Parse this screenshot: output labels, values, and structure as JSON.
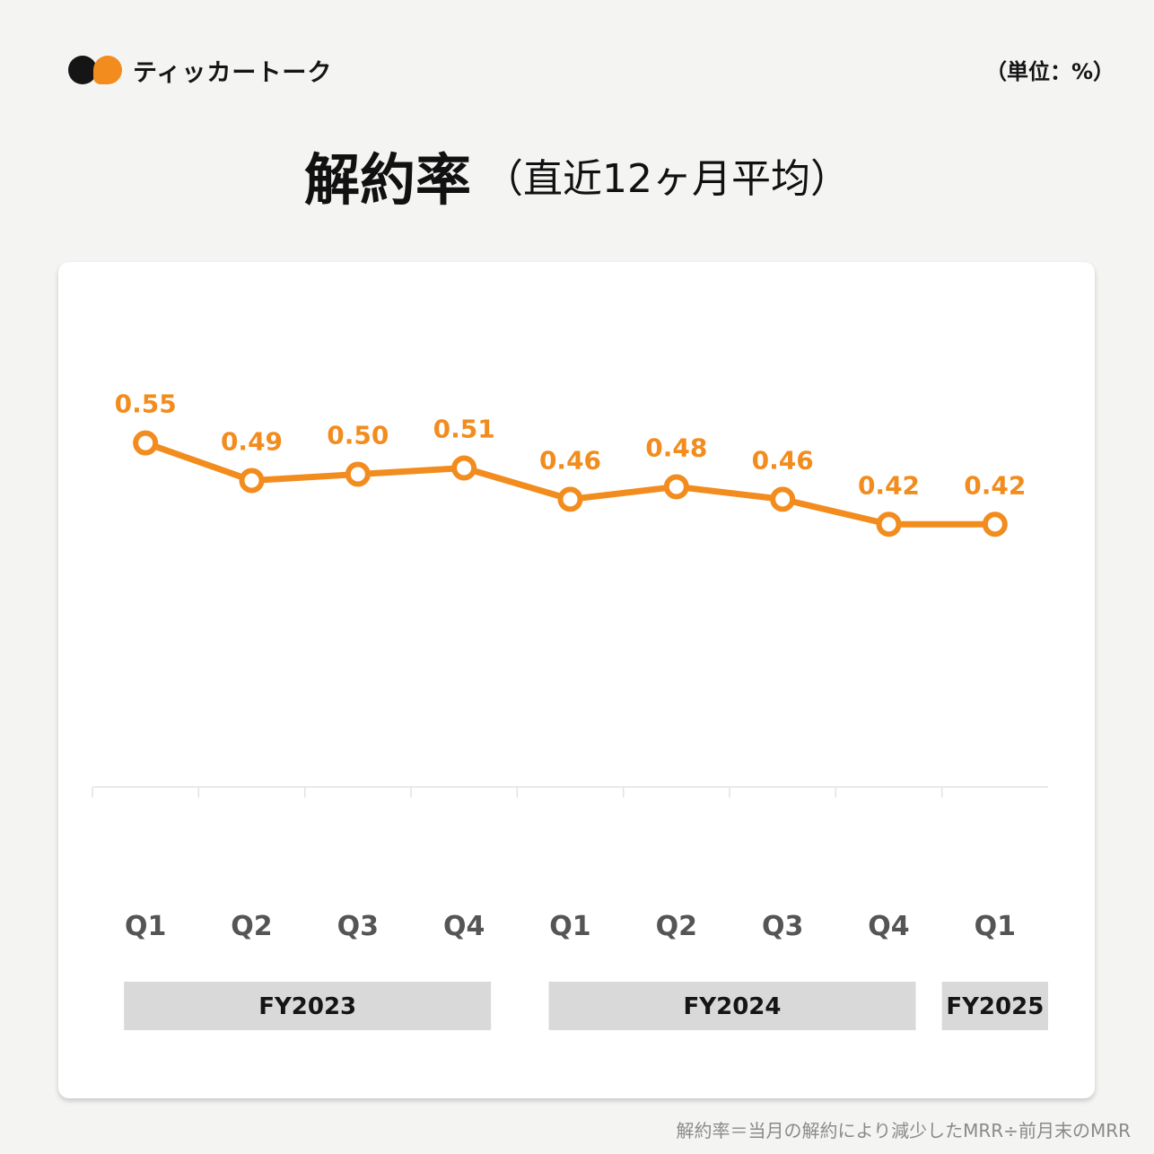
{
  "brand": {
    "name": "ティッカートーク"
  },
  "unit_label": "（単位：%）",
  "title": {
    "main": "解約率",
    "sub": "（直近12ヶ月平均）"
  },
  "footnote": "解約率＝当月の解約により減少したMRR÷前月末のMRR",
  "colors": {
    "line": "#f28c1e",
    "fy_band": "#d9d9d9",
    "axis_text": "#555555",
    "label": "#f28c1e"
  },
  "chart_data": {
    "type": "line",
    "title": "解約率（直近12ヶ月平均）",
    "unit": "%",
    "categories": [
      "Q1",
      "Q2",
      "Q3",
      "Q4",
      "Q1",
      "Q2",
      "Q3",
      "Q4",
      "Q1"
    ],
    "values": [
      0.55,
      0.49,
      0.5,
      0.51,
      0.46,
      0.48,
      0.46,
      0.42,
      0.42
    ],
    "value_labels": [
      "0.55",
      "0.49",
      "0.50",
      "0.51",
      "0.46",
      "0.48",
      "0.46",
      "0.42",
      "0.42"
    ],
    "fiscal_years": [
      {
        "label": "FY2023",
        "start": 0,
        "end": 3
      },
      {
        "label": "FY2024",
        "start": 4,
        "end": 7
      },
      {
        "label": "FY2025",
        "start": 8,
        "end": 8
      }
    ],
    "ylim": [
      0,
      0.95
    ],
    "grid": false,
    "legend": "none"
  }
}
